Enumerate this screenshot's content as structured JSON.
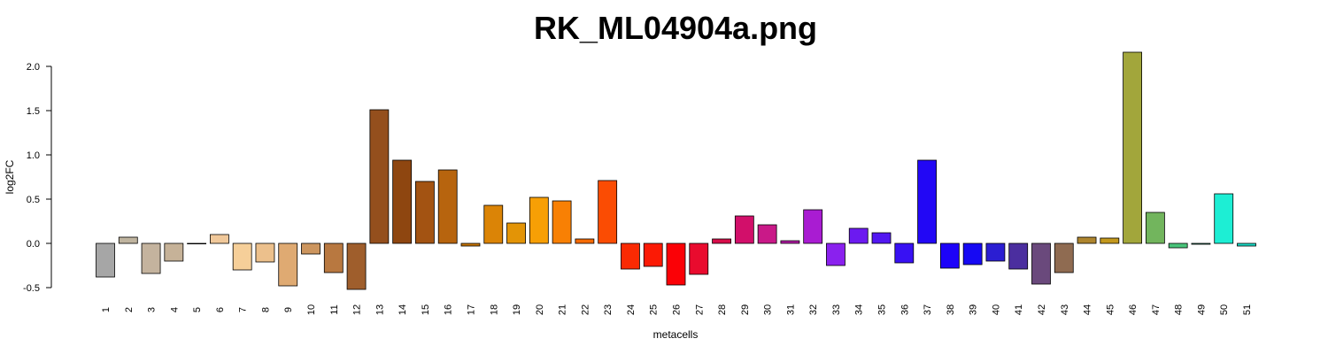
{
  "chart_data": {
    "type": "bar",
    "title": "RK_ML04904a.png",
    "xlabel": "metacells",
    "ylabel": "log2FC",
    "ylim": [
      -0.5,
      2.0
    ],
    "yticks": [
      "-0.5",
      "0.0",
      "0.5",
      "1.0",
      "1.5",
      "2.0"
    ],
    "categories": [
      "1",
      "2",
      "3",
      "4",
      "5",
      "6",
      "7",
      "8",
      "9",
      "10",
      "11",
      "12",
      "13",
      "14",
      "15",
      "16",
      "17",
      "18",
      "19",
      "20",
      "21",
      "22",
      "23",
      "24",
      "25",
      "26",
      "27",
      "28",
      "29",
      "30",
      "31",
      "32",
      "33",
      "34",
      "35",
      "36",
      "37",
      "38",
      "39",
      "40",
      "41",
      "42",
      "43",
      "44",
      "45",
      "46",
      "47",
      "48",
      "49",
      "50",
      "51"
    ],
    "values": [
      -0.38,
      0.07,
      -0.34,
      -0.2,
      0.0,
      0.1,
      -0.3,
      -0.21,
      -0.48,
      -0.12,
      -0.33,
      -0.52,
      1.51,
      0.94,
      0.7,
      0.83,
      -0.03,
      0.43,
      0.23,
      0.52,
      0.48,
      0.05,
      0.71,
      -0.29,
      -0.26,
      -0.47,
      -0.35,
      0.05,
      0.31,
      0.21,
      0.03,
      0.38,
      -0.25,
      0.17,
      0.12,
      -0.22,
      0.94,
      -0.28,
      -0.24,
      -0.2,
      -0.29,
      -0.46,
      -0.33,
      0.07,
      0.06,
      2.16,
      0.35,
      -0.05,
      -0.01,
      0.56,
      -0.03
    ],
    "colors": [
      "#a6a6a6",
      "#bfb49f",
      "#c4b39e",
      "#c6b298",
      "#d4c2a8",
      "#f0c89a",
      "#f6cf99",
      "#ecc08c",
      "#dfaa72",
      "#cc955e",
      "#b87840",
      "#9f5e2c",
      "#944f1d",
      "#8e4610",
      "#a35312",
      "#b7640e",
      "#c67508",
      "#db8406",
      "#e39406",
      "#f79f05",
      "#f88004",
      "#f56a04",
      "#fb4c03",
      "#fa2a03",
      "#fb1a05",
      "#fb0106",
      "#e90b2e",
      "#d70e4a",
      "#d20f6a",
      "#c91988",
      "#b41aa6",
      "#a91cd2",
      "#8a21ee",
      "#6c1af0",
      "#5217f1",
      "#3811f3",
      "#2207f5",
      "#1d03f8",
      "#1609f3",
      "#2b1ed2",
      "#4b2e9f",
      "#6a497c",
      "#8f6b51",
      "#ae852e",
      "#c3981d",
      "#a2a63b",
      "#72b55d",
      "#49c47a",
      "#33d1a1",
      "#1deed4",
      "#1ad9c5"
    ]
  }
}
